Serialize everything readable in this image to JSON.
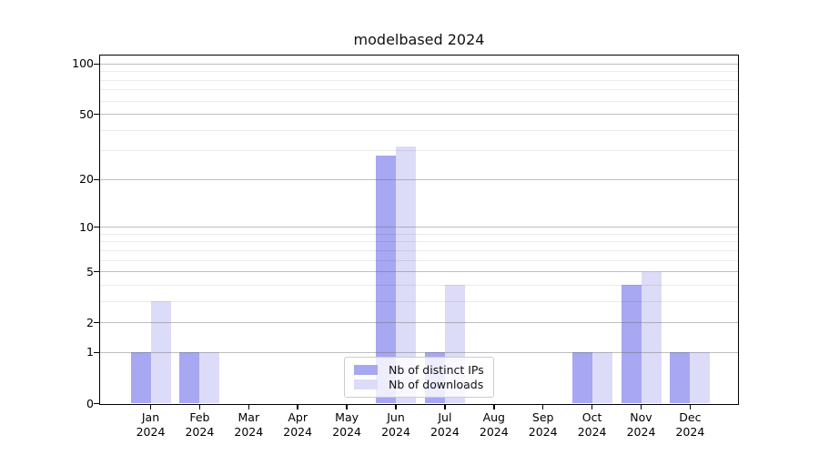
{
  "figure": {
    "title": "modelbased 2024"
  },
  "legend": {
    "items": [
      {
        "label": "Nb of distinct IPs",
        "color": "#a7a7f2"
      },
      {
        "label": "Nb of downloads",
        "color": "#dcdcf8"
      }
    ]
  },
  "chart_data": {
    "type": "bar",
    "title": "modelbased 2024",
    "categories": [
      {
        "month": "Jan",
        "year": "2024"
      },
      {
        "month": "Feb",
        "year": "2024"
      },
      {
        "month": "Mar",
        "year": "2024"
      },
      {
        "month": "Apr",
        "year": "2024"
      },
      {
        "month": "May",
        "year": "2024"
      },
      {
        "month": "Jun",
        "year": "2024"
      },
      {
        "month": "Jul",
        "year": "2024"
      },
      {
        "month": "Aug",
        "year": "2024"
      },
      {
        "month": "Sep",
        "year": "2024"
      },
      {
        "month": "Oct",
        "year": "2024"
      },
      {
        "month": "Nov",
        "year": "2024"
      },
      {
        "month": "Dec",
        "year": "2024"
      }
    ],
    "series": [
      {
        "name": "Nb of distinct IPs",
        "color": "#a7a7f2",
        "values": [
          1,
          1,
          0,
          0,
          0,
          28,
          1,
          0,
          0,
          1,
          4,
          1
        ]
      },
      {
        "name": "Nb of downloads",
        "color": "#dcdcf8",
        "values": [
          3,
          1,
          0,
          0,
          0,
          32,
          4,
          0,
          0,
          1,
          5,
          1
        ]
      }
    ],
    "y_axis": {
      "scale": "log1p",
      "ticks": [
        {
          "value": 0,
          "label": "0"
        },
        {
          "value": 1,
          "label": "1"
        },
        {
          "value": 2,
          "label": "2"
        },
        {
          "value": 5,
          "label": "5"
        },
        {
          "value": 10,
          "label": "10"
        },
        {
          "value": 20,
          "label": "20"
        },
        {
          "value": 50,
          "label": "50"
        },
        {
          "value": 100,
          "label": "100"
        }
      ],
      "minor_ticks": [
        3,
        4,
        6,
        7,
        8,
        9,
        30,
        40,
        60,
        70,
        80,
        90
      ],
      "ylim": [
        0,
        112
      ]
    },
    "grid": true,
    "legend_position": "lower center"
  }
}
